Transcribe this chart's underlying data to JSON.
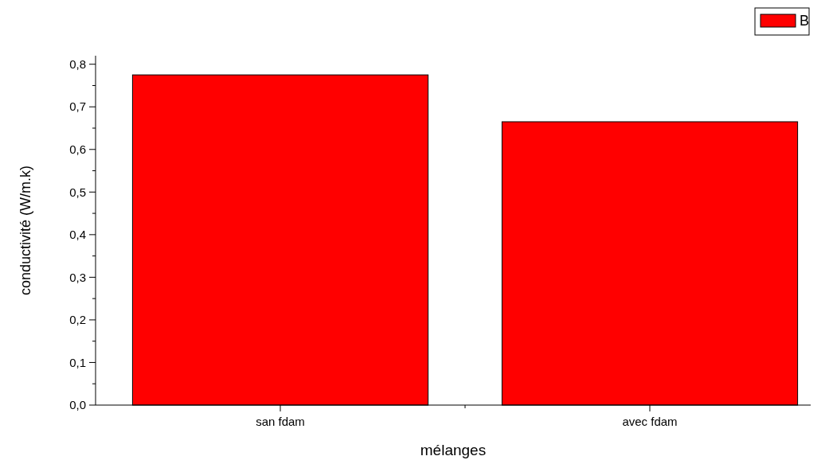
{
  "chart_data": {
    "type": "bar",
    "xlabel": "mélanges",
    "ylabel": "conductivité (W/m.k)",
    "categories": [
      "san fdam",
      "avec fdam"
    ],
    "series": [
      {
        "name": "B",
        "color": "#ff0000",
        "values": [
          0.775,
          0.665
        ]
      }
    ],
    "ylim": [
      0,
      0.82
    ],
    "yticks": [
      {
        "value": 0,
        "label": "0,0"
      },
      {
        "value": 0.05,
        "label": null
      },
      {
        "value": 0.1,
        "label": "0,1"
      },
      {
        "value": 0.15,
        "label": null
      },
      {
        "value": 0.2,
        "label": "0,2"
      },
      {
        "value": 0.25,
        "label": null
      },
      {
        "value": 0.3,
        "label": "0,3"
      },
      {
        "value": 0.35,
        "label": null
      },
      {
        "value": 0.4,
        "label": "0,4"
      },
      {
        "value": 0.45,
        "label": null
      },
      {
        "value": 0.5,
        "label": "0,5"
      },
      {
        "value": 0.55,
        "label": null
      },
      {
        "value": 0.6,
        "label": "0,6"
      },
      {
        "value": 0.65,
        "label": null
      },
      {
        "value": 0.7,
        "label": "0,7"
      },
      {
        "value": 0.75,
        "label": null
      },
      {
        "value": 0.8,
        "label": "0,8"
      }
    ],
    "grid": false,
    "legend": "top right"
  }
}
